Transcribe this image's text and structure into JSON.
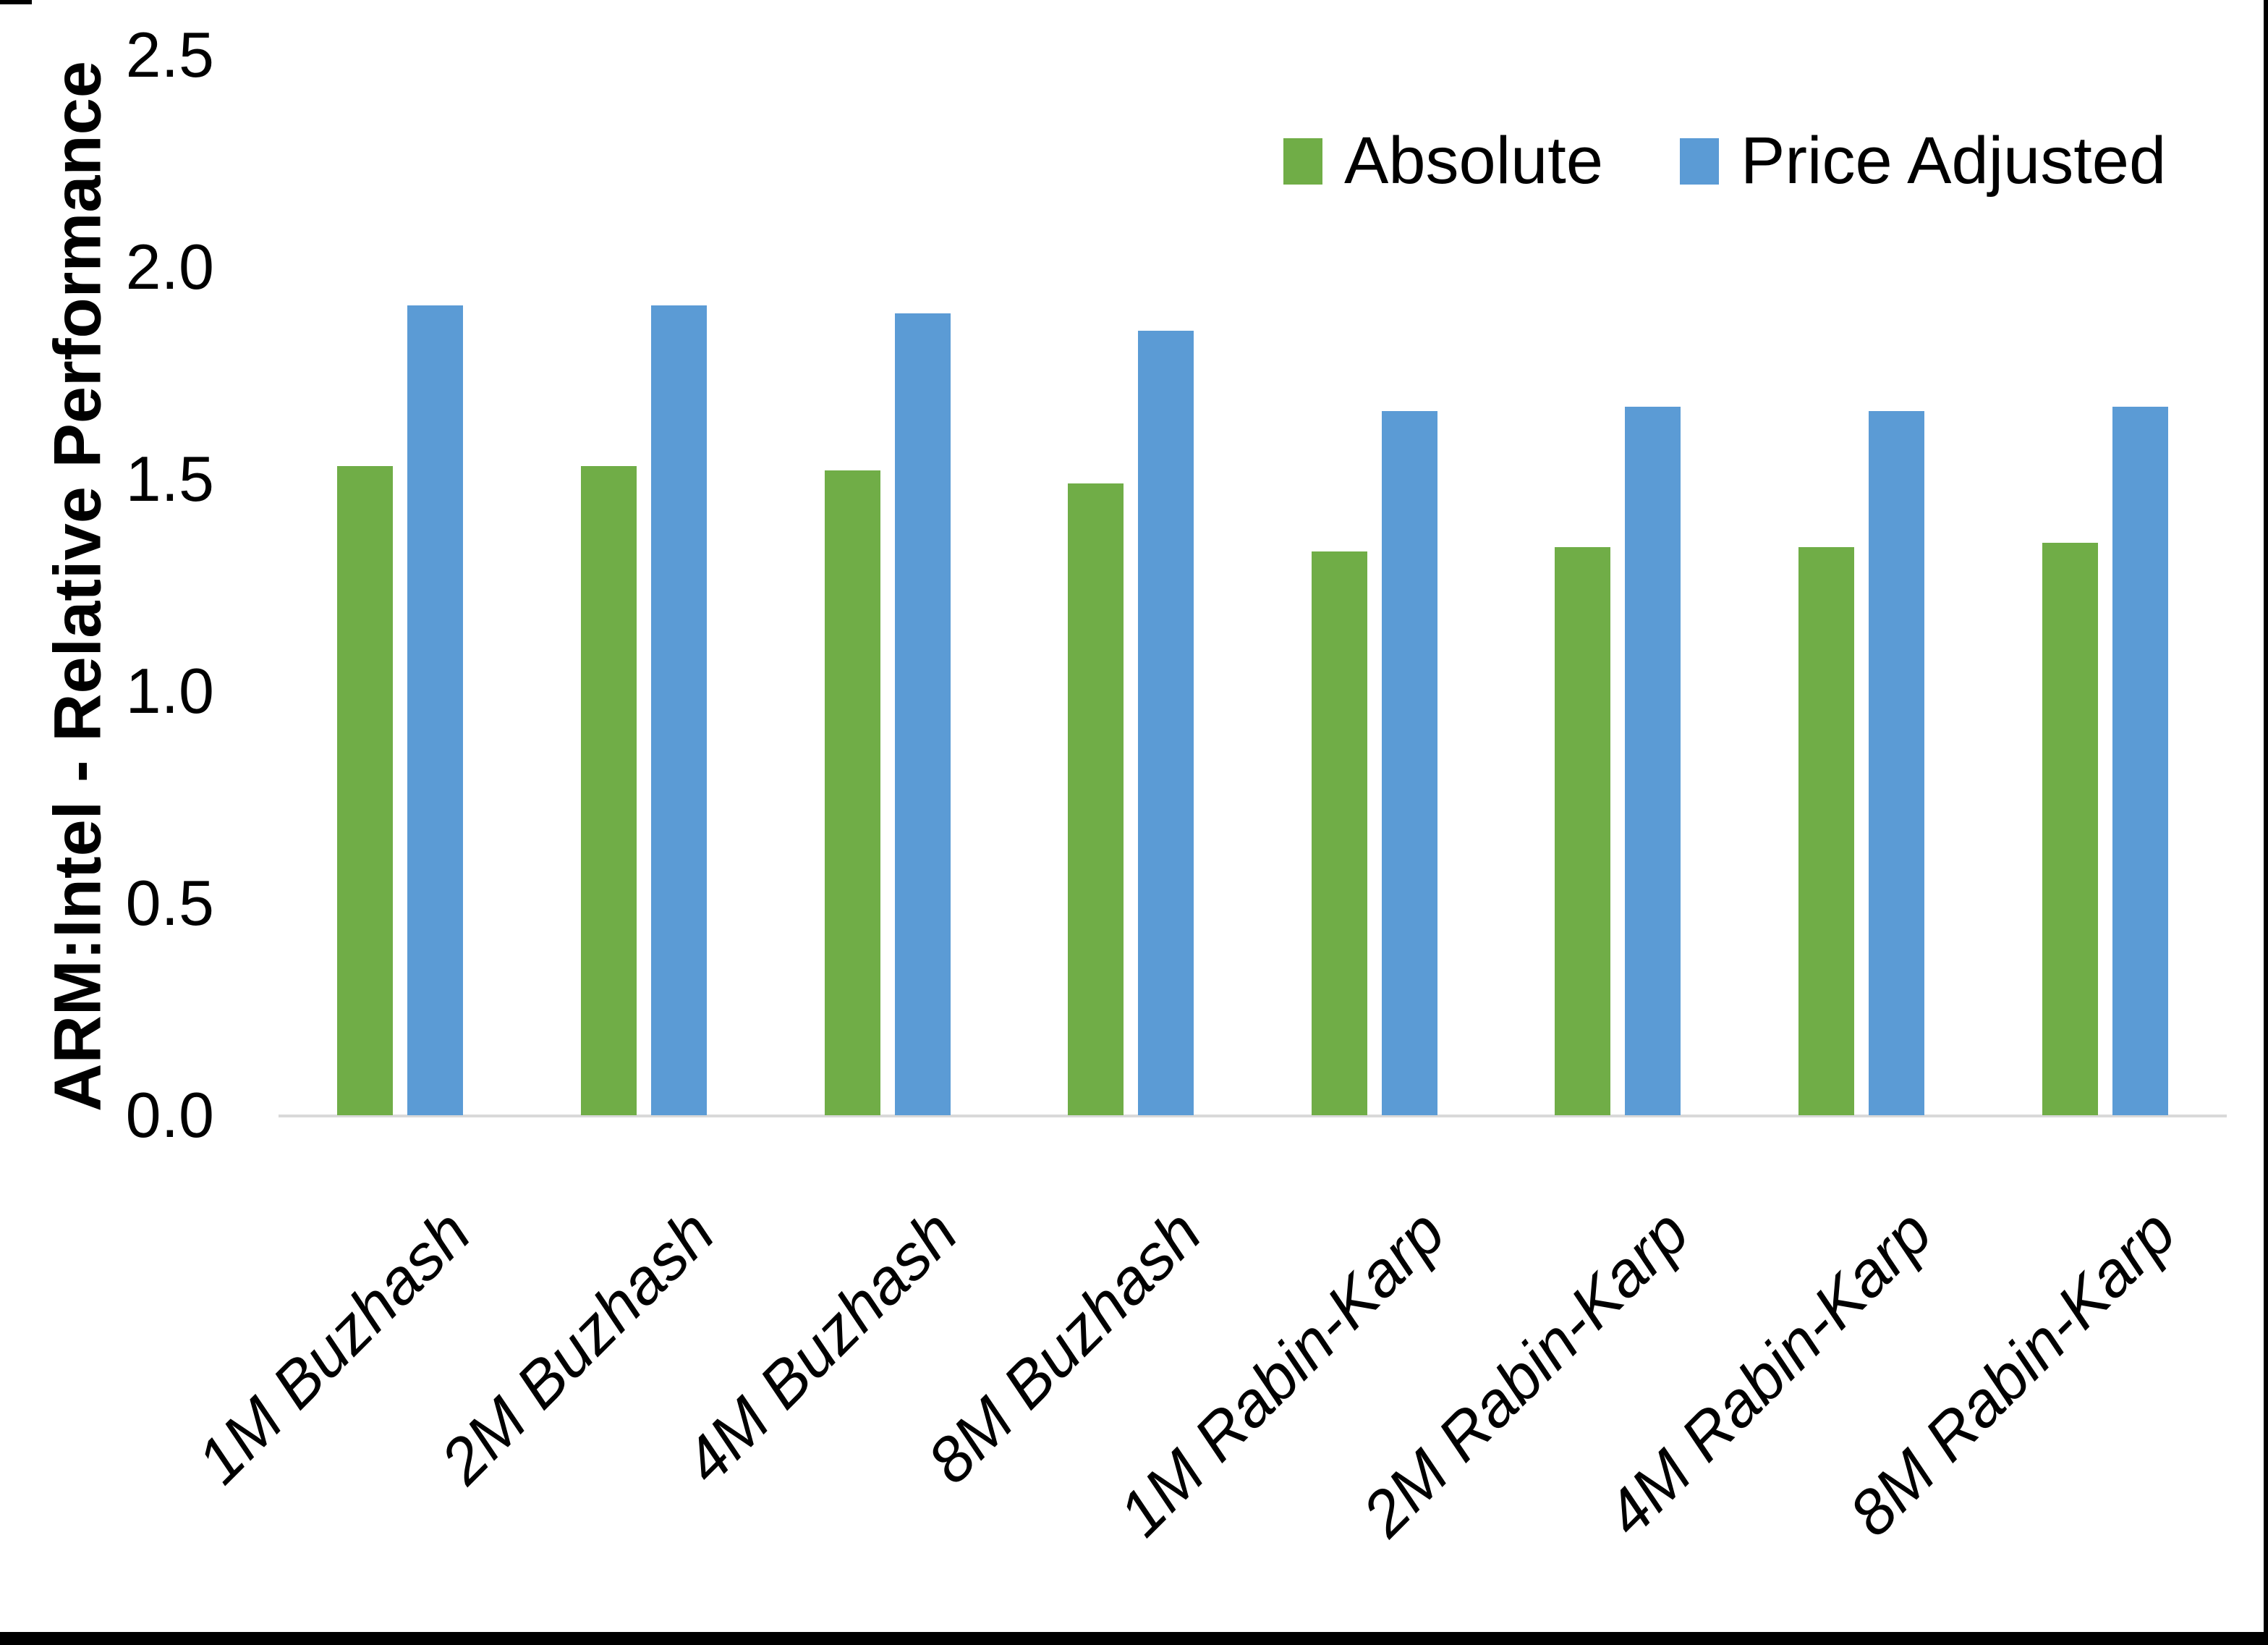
{
  "chart_data": {
    "type": "bar",
    "title": "",
    "categories": [
      "1M Buzhash",
      "2M Buzhash",
      "4M Buzhash",
      "8M Buzhash",
      "1M Rabin-Karp",
      "2M Rabin-Karp",
      "4M Rabin-Karp",
      "8M Rabin-Karp"
    ],
    "series": [
      {
        "name": "Absolute",
        "color": "#70AD47",
        "values": [
          1.53,
          1.53,
          1.52,
          1.49,
          1.33,
          1.34,
          1.34,
          1.35
        ]
      },
      {
        "name": "Price Adjusted",
        "color": "#5B9BD5",
        "values": [
          1.91,
          1.91,
          1.89,
          1.85,
          1.66,
          1.67,
          1.66,
          1.67
        ]
      }
    ],
    "xlabel": "",
    "ylabel": "ARM:Intel - Relative Performance",
    "ylim": [
      0.0,
      2.5
    ],
    "y_ticks": [
      "0.0",
      "0.5",
      "1.0",
      "1.5",
      "2.0",
      "2.5"
    ],
    "grid": false,
    "legend_position": "top-right"
  },
  "colors": {
    "background": "#FFFFFF",
    "axis_line": "#D9D9D9",
    "text": "#000000",
    "frame": "#000000"
  }
}
